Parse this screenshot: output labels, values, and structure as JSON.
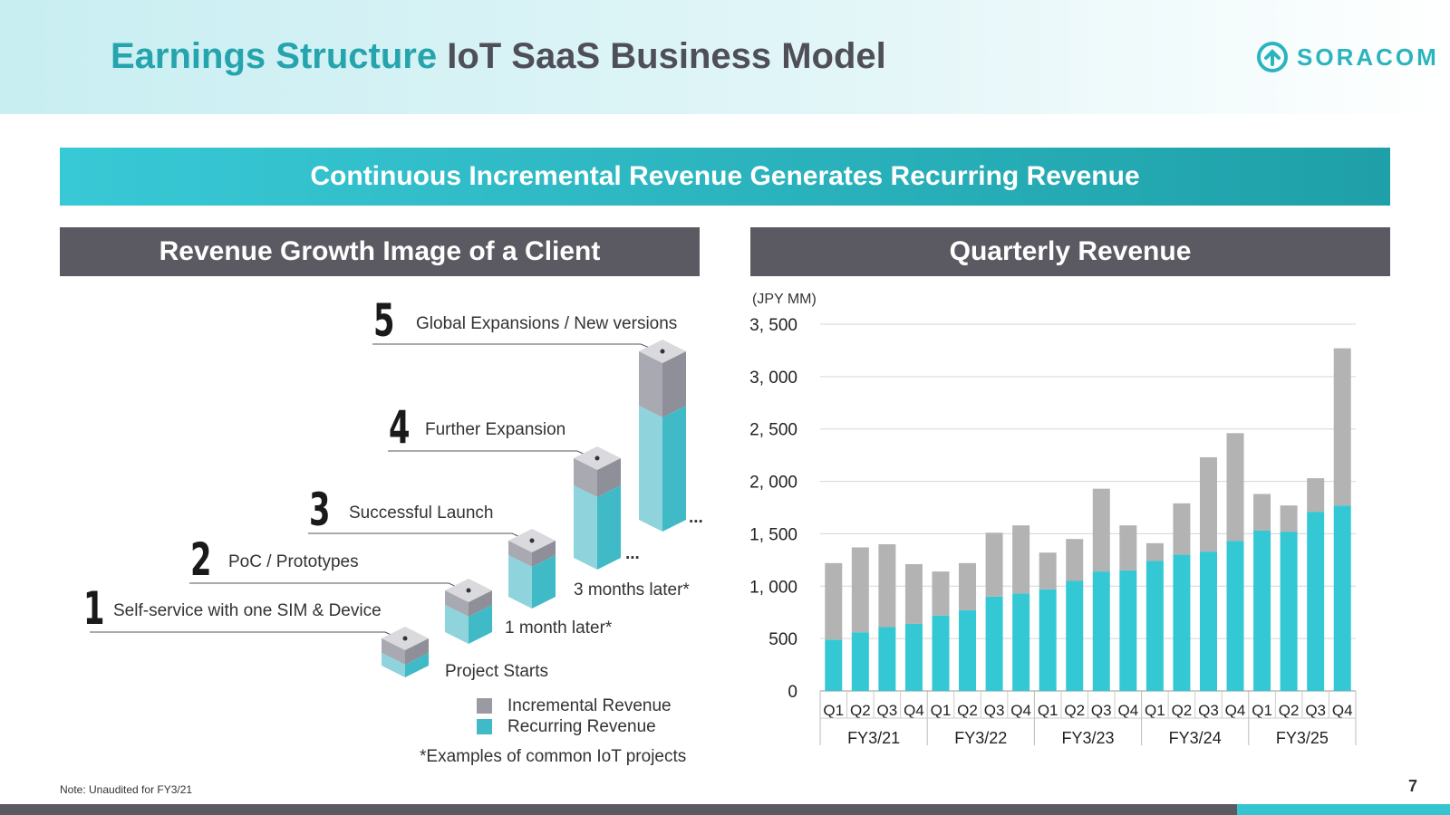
{
  "header": {
    "title_part1": "Earnings Structure",
    "title_part2": "IoT SaaS Business Model",
    "logo_text": "SORACOM"
  },
  "banner": {
    "text": "Continuous Incremental Revenue Generates Recurring Revenue"
  },
  "left_panel": {
    "heading": "Revenue Growth Image of a Client",
    "stages": [
      {
        "number": "1",
        "label": "Self-service with one SIM & Device"
      },
      {
        "number": "2",
        "label": "PoC / Prototypes"
      },
      {
        "number": "3",
        "label": "Successful Launch"
      },
      {
        "number": "4",
        "label": "Further Expansion"
      },
      {
        "number": "5",
        "label": "Global Expansions / New versions"
      }
    ],
    "time_labels": {
      "project_starts": "Project Starts",
      "one_month": "1 month later*",
      "three_months": "3 months later*",
      "ellipsis": "..."
    },
    "legend": {
      "incremental": "Incremental Revenue",
      "recurring": "Recurring Revenue"
    },
    "footnote": "*Examples of common IoT projects"
  },
  "right_panel": {
    "heading": "Quarterly Revenue"
  },
  "chart_data": {
    "type": "bar",
    "stacked": true,
    "unit_label": "(JPY MM)",
    "ylim": [
      0,
      3500
    ],
    "yticks": [
      0,
      500,
      1000,
      1500,
      2000,
      2500,
      3000,
      3500
    ],
    "ytick_labels": [
      "0",
      "500",
      "1, 000",
      "1, 500",
      "2, 000",
      "2, 500",
      "3, 000",
      "3, 500"
    ],
    "grid": true,
    "categories": [
      "Q1",
      "Q2",
      "Q3",
      "Q4",
      "Q1",
      "Q2",
      "Q3",
      "Q4",
      "Q1",
      "Q2",
      "Q3",
      "Q4",
      "Q1",
      "Q2",
      "Q3",
      "Q4",
      "Q1",
      "Q2",
      "Q3",
      "Q4"
    ],
    "groups": [
      "FY3/21",
      "FY3/22",
      "FY3/23",
      "FY3/24",
      "FY3/25"
    ],
    "series": [
      {
        "name": "Recurring Revenue",
        "color": "#34c8d4",
        "values": [
          490,
          560,
          610,
          640,
          720,
          770,
          900,
          930,
          970,
          1050,
          1140,
          1150,
          1240,
          1300,
          1330,
          1430,
          1530,
          1520,
          1710,
          1770
        ]
      },
      {
        "name": "Incremental Revenue",
        "color": "#b3b3b3",
        "values": [
          730,
          810,
          790,
          570,
          420,
          450,
          610,
          650,
          350,
          400,
          790,
          430,
          170,
          490,
          900,
          1030,
          350,
          250,
          320,
          1500
        ]
      }
    ]
  },
  "footer": {
    "note": "Note: Unaudited for FY3/21",
    "page_number": "7"
  },
  "colors": {
    "teal": "#34c8d4",
    "teal_dark": "#25a4ad",
    "gray_bar": "#b3b3b3",
    "panel_head": "#5b5a62"
  }
}
